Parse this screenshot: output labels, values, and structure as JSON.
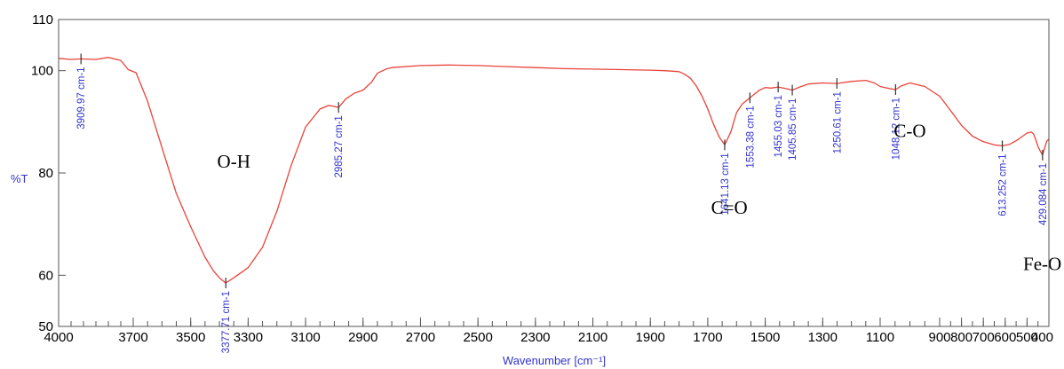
{
  "chart_data": {
    "type": "line",
    "title": "",
    "xlabel": "Wavenumber [cm⁻¹]",
    "ylabel": "%T",
    "xlim": [
      4000,
      400
    ],
    "ylim": [
      50,
      110
    ],
    "x_ticks": [
      4000,
      3700,
      3500,
      3300,
      3100,
      2900,
      2700,
      2500,
      2300,
      2100,
      1900,
      1700,
      1500,
      1300,
      1100,
      900,
      800,
      700,
      600,
      500,
      400
    ],
    "y_ticks": [
      50,
      60,
      80,
      100,
      110
    ],
    "line_color": "#e8433a",
    "grid": false,
    "series": [
      {
        "x": [
          4000,
          3950,
          3909.97,
          3850,
          3800,
          3750,
          3720,
          3690,
          3650,
          3600,
          3550,
          3500,
          3450,
          3420,
          3400,
          3377.71,
          3350,
          3300,
          3250,
          3200,
          3150,
          3100,
          3050,
          3020,
          3000,
          2985.27,
          2960,
          2930,
          2900,
          2870,
          2850,
          2820,
          2800,
          2700,
          2600,
          2500,
          2400,
          2300,
          2200,
          2100,
          2000,
          1900,
          1850,
          1800,
          1780,
          1760,
          1740,
          1720,
          1700,
          1680,
          1660,
          1641.13,
          1620,
          1600,
          1580,
          1553.38,
          1520,
          1500,
          1480,
          1455.03,
          1430,
          1405.85,
          1380,
          1350,
          1300,
          1250.61,
          1200,
          1150,
          1120,
          1100,
          1070,
          1048.12,
          1030,
          1000,
          950,
          900,
          850,
          800,
          750,
          700,
          650,
          613.252,
          580,
          550,
          520,
          500,
          480,
          470,
          460,
          450,
          440,
          429.084,
          420,
          410,
          400
        ],
        "y": [
          102.4,
          102.2,
          102.3,
          102.2,
          102.6,
          102.0,
          100.2,
          99.6,
          94,
          85,
          76,
          69.5,
          63.5,
          60.8,
          59.5,
          58.5,
          59.5,
          61.5,
          65.5,
          72.5,
          81.5,
          89,
          92.5,
          93.2,
          93.0,
          92.8,
          94.5,
          95.6,
          96.2,
          97.8,
          99.5,
          100.3,
          100.6,
          101.0,
          101.1,
          101.0,
          100.8,
          100.6,
          100.4,
          100.3,
          100.2,
          100.1,
          100.0,
          99.8,
          99.3,
          98.5,
          97.0,
          95.0,
          92.5,
          89.5,
          87.0,
          85.5,
          88.0,
          91.8,
          93.5,
          94.7,
          96.2,
          96.7,
          96.6,
          96.8,
          96.5,
          96.2,
          96.8,
          97.4,
          97.6,
          97.5,
          97.9,
          98.1,
          97.6,
          96.9,
          96.5,
          96.3,
          97.0,
          97.6,
          96.9,
          95.0,
          92.2,
          89.3,
          87.2,
          86.1,
          85.5,
          85.3,
          85.6,
          86.3,
          87.2,
          87.8,
          88.0,
          87.6,
          86.5,
          85.2,
          84.3,
          83.5,
          84.8,
          86.2,
          86.6
        ]
      }
    ],
    "peaks": [
      {
        "x": 3909.97,
        "y": 102.3,
        "label": "3909.97 cm-1"
      },
      {
        "x": 3377.71,
        "y": 58.5,
        "label": "3377.71 cm-1"
      },
      {
        "x": 2985.27,
        "y": 92.8,
        "label": "2985.27 cm-1"
      },
      {
        "x": 1641.13,
        "y": 85.5,
        "label": "1641.13 cm-1"
      },
      {
        "x": 1553.38,
        "y": 94.7,
        "label": "1553.38 cm-1"
      },
      {
        "x": 1455.03,
        "y": 96.8,
        "label": "1455.03 cm-1"
      },
      {
        "x": 1405.85,
        "y": 96.2,
        "label": "1405.85 cm-1"
      },
      {
        "x": 1250.61,
        "y": 97.5,
        "label": "1250.61 cm-1"
      },
      {
        "x": 1048.12,
        "y": 96.3,
        "label": "1048.12 cm-1"
      },
      {
        "x": 613.252,
        "y": 85.3,
        "label": "613.252 cm-1"
      },
      {
        "x": 429.084,
        "y": 83.5,
        "label": "429.084 cm-1"
      }
    ],
    "annotations": [
      {
        "text": "O-H",
        "x": 3350,
        "y": 81
      },
      {
        "text": "C=O",
        "x": 1625,
        "y": 72
      },
      {
        "text": "C-O",
        "x": 1000,
        "y": 87
      },
      {
        "text": "Fe-O",
        "x": 430,
        "y": 61
      }
    ]
  }
}
